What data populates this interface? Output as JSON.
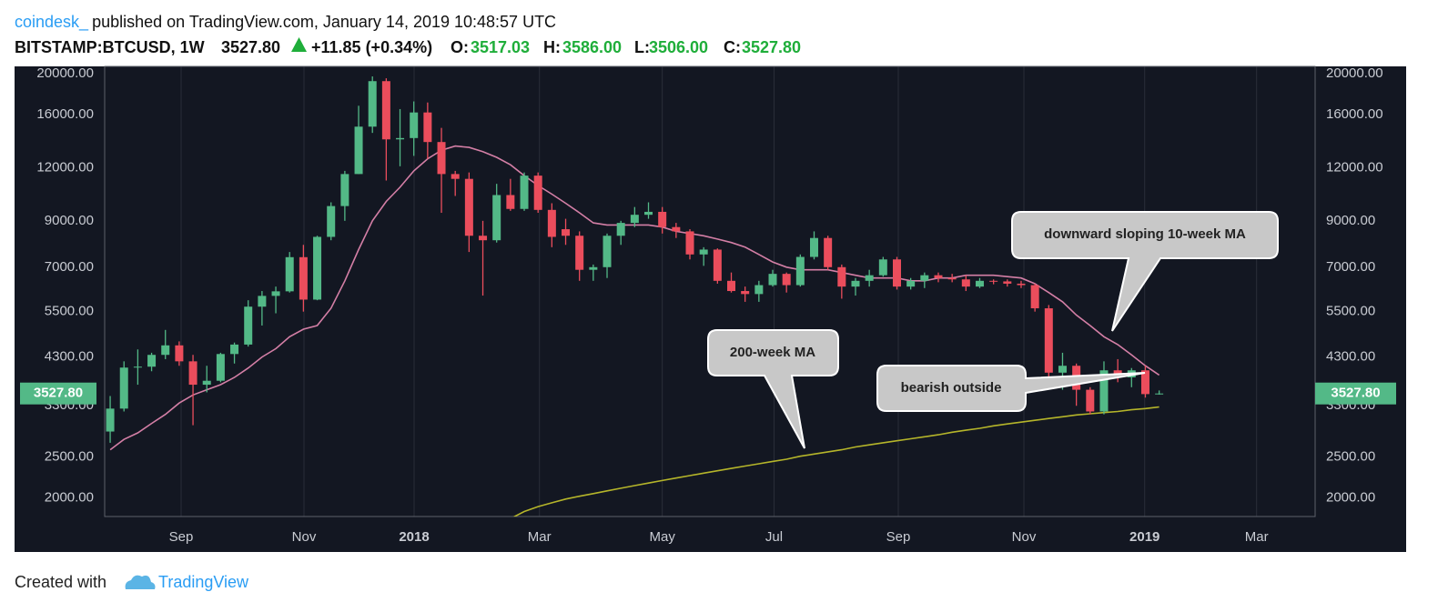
{
  "header": {
    "author": "coindesk_",
    "published": "published on TradingView.com, January 14, 2019 10:48:57 UTC",
    "symbol": "BITSTAMP:BTCUSD, 1W",
    "last": "3527.80",
    "change": "+11.85 (+0.34%)",
    "o_label": "O:",
    "o": "3517.03",
    "h_label": "H:",
    "h": "3586.00",
    "l_label": "L:",
    "l": "3506.00",
    "c_label": "C:",
    "c": "3527.80"
  },
  "chart_data": {
    "type": "candlestick",
    "up_color": "#53b987",
    "down_color": "#eb4d5c",
    "open": [
      2870,
      3250,
      4060,
      4080,
      4350,
      4580,
      4200,
      3700,
      3780,
      4370,
      4600,
      5650,
      5990,
      6140,
      7390,
      5870,
      8250,
      9750,
      11600,
      15000,
      19200,
      14000,
      14100,
      16200,
      13800,
      11600,
      11300,
      8300,
      8100,
      10350,
      9600,
      11500,
      9550,
      8600,
      8300,
      6900,
      7000,
      8300,
      8900,
      9300,
      9450,
      8700,
      8500,
      7500,
      7700,
      6500,
      6150,
      6050,
      6350,
      6750,
      6350,
      7400,
      8200,
      7000,
      6300,
      6500,
      6700,
      7300,
      6300,
      6500,
      6700,
      6600,
      6550,
      6300,
      6500,
      6480,
      6400,
      6350,
      5600,
      3950,
      4100,
      3600,
      3200,
      4000,
      3850,
      4000,
      3517.03
    ],
    "high": [
      3480,
      4200,
      4480,
      4400,
      4980,
      4680,
      4350,
      4100,
      4400,
      4650,
      5850,
      6150,
      6300,
      7600,
      7900,
      8300,
      9950,
      11800,
      16800,
      19700,
      19500,
      16500,
      17200,
      17100,
      14900,
      11800,
      11700,
      9000,
      11000,
      11300,
      11700,
      11700,
      9900,
      9100,
      8500,
      7100,
      8400,
      9000,
      9700,
      9950,
      9700,
      8900,
      8600,
      7800,
      7750,
      6800,
      6300,
      6500,
      6900,
      6800,
      7500,
      8500,
      8300,
      7100,
      6600,
      6900,
      7400,
      7400,
      6600,
      6800,
      6800,
      6750,
      6700,
      6600,
      6550,
      6550,
      6500,
      6400,
      5700,
      4400,
      4150,
      3650,
      4200,
      4250,
      4050,
      4100,
      3586
    ],
    "low": [
      2700,
      3200,
      3700,
      3980,
      4250,
      4100,
      2970,
      3550,
      3750,
      4150,
      4550,
      5100,
      5450,
      6100,
      5500,
      5850,
      8100,
      9000,
      11600,
      14500,
      11200,
      12100,
      12800,
      12600,
      9400,
      10300,
      7600,
      6000,
      8000,
      9500,
      9500,
      9400,
      7800,
      7900,
      6500,
      6500,
      6600,
      7900,
      8700,
      9100,
      8400,
      8200,
      7300,
      7050,
      6400,
      6100,
      5800,
      5800,
      6300,
      6100,
      6300,
      7300,
      6900,
      5900,
      6000,
      6300,
      6650,
      6200,
      6200,
      6250,
      6450,
      6450,
      6150,
      6250,
      6380,
      6300,
      6250,
      5500,
      3800,
      3600,
      3300,
      3150,
      3150,
      3750,
      3650,
      3450,
      3506
    ],
    "close": [
      3250,
      4060,
      4080,
      4350,
      4580,
      4200,
      3700,
      3780,
      4370,
      4600,
      5650,
      5990,
      6140,
      7390,
      5870,
      8250,
      9750,
      11600,
      15000,
      19200,
      14000,
      14100,
      16200,
      13800,
      11600,
      11300,
      8300,
      8100,
      10350,
      9600,
      11500,
      9550,
      8250,
      8300,
      6900,
      7000,
      8300,
      8900,
      9300,
      9450,
      8700,
      8500,
      7500,
      7700,
      6500,
      6150,
      6050,
      6350,
      6750,
      6350,
      7400,
      8200,
      7000,
      6300,
      6500,
      6700,
      7300,
      6300,
      6500,
      6700,
      6600,
      6550,
      6300,
      6500,
      6480,
      6400,
      6350,
      5600,
      3950,
      4100,
      3600,
      3200,
      4000,
      3850,
      4000,
      3516,
      3527.8
    ],
    "ma10": {
      "color": "#d47fa6",
      "values": [
        2600,
        2750,
        2850,
        3000,
        3150,
        3350,
        3500,
        3600,
        3700,
        3850,
        4050,
        4300,
        4500,
        4800,
        5000,
        5100,
        5600,
        6500,
        7700,
        9000,
        10000,
        10800,
        11800,
        12600,
        13200,
        13500,
        13400,
        13100,
        12700,
        12200,
        11500,
        10900,
        10400,
        9900,
        9400,
        8900,
        8800,
        8800,
        8800,
        8800,
        8700,
        8500,
        8400,
        8300,
        8150,
        8000,
        7800,
        7500,
        7200,
        7000,
        6900,
        6900,
        6900,
        6800,
        6700,
        6600,
        6600,
        6600,
        6500,
        6500,
        6600,
        6600,
        6700,
        6700,
        6700,
        6650,
        6600,
        6400,
        6100,
        5800,
        5400,
        5100,
        4800,
        4600,
        4350,
        4100,
        3900
      ]
    },
    "ma200": {
      "color": "#b5b52a",
      "values": [
        null,
        null,
        null,
        null,
        null,
        null,
        null,
        null,
        null,
        null,
        null,
        null,
        null,
        null,
        null,
        null,
        null,
        null,
        null,
        null,
        null,
        null,
        null,
        null,
        null,
        null,
        null,
        null,
        null,
        1790,
        1860,
        1910,
        1950,
        1990,
        2020,
        2050,
        2080,
        2110,
        2140,
        2170,
        2200,
        2230,
        2260,
        2290,
        2320,
        2350,
        2380,
        2410,
        2440,
        2470,
        2510,
        2540,
        2570,
        2600,
        2640,
        2670,
        2700,
        2730,
        2760,
        2790,
        2820,
        2860,
        2890,
        2920,
        2960,
        2990,
        3020,
        3050,
        3080,
        3110,
        3140,
        3160,
        3180,
        3200,
        3230,
        3250,
        3280
      ]
    },
    "log_scale": true,
    "grid": true,
    "ylim": [
      1810,
      20800
    ],
    "yticks": [
      {
        "value": 2000,
        "label": "2000.00"
      },
      {
        "value": 2500,
        "label": "2500.00"
      },
      {
        "value": 3300,
        "label": "3300.00"
      },
      {
        "value": 4300,
        "label": "4300.00"
      },
      {
        "value": 5500,
        "label": "5500.00"
      },
      {
        "value": 7000,
        "label": "7000.00"
      },
      {
        "value": 9000,
        "label": "9000.00"
      },
      {
        "value": 12000,
        "label": "12000.00"
      },
      {
        "value": 16000,
        "label": "16000.00"
      },
      {
        "value": 20000,
        "label": "20000.00"
      }
    ],
    "xlim": [
      -0.4,
      87.3
    ],
    "xticks": [
      {
        "value": 5.14,
        "label": "Sep"
      },
      {
        "value": 14.04,
        "label": "Nov"
      },
      {
        "value": 22.02,
        "label": "2018"
      },
      {
        "value": 31.1,
        "label": "Mar"
      },
      {
        "value": 40.0,
        "label": "May"
      },
      {
        "value": 48.1,
        "label": "Jul"
      },
      {
        "value": 57.1,
        "label": "Sep"
      },
      {
        "value": 66.2,
        "label": "Nov"
      },
      {
        "value": 74.95,
        "label": "2019"
      },
      {
        "value": 83.06,
        "label": "Mar"
      }
    ],
    "last_price": {
      "value": 3527.8,
      "label": "3527.80"
    },
    "annotations": [
      "downward sloping 10-week MA",
      "200-week MA",
      "bearish outside"
    ]
  },
  "footer": {
    "created": "Created with",
    "brand": "TradingView"
  }
}
